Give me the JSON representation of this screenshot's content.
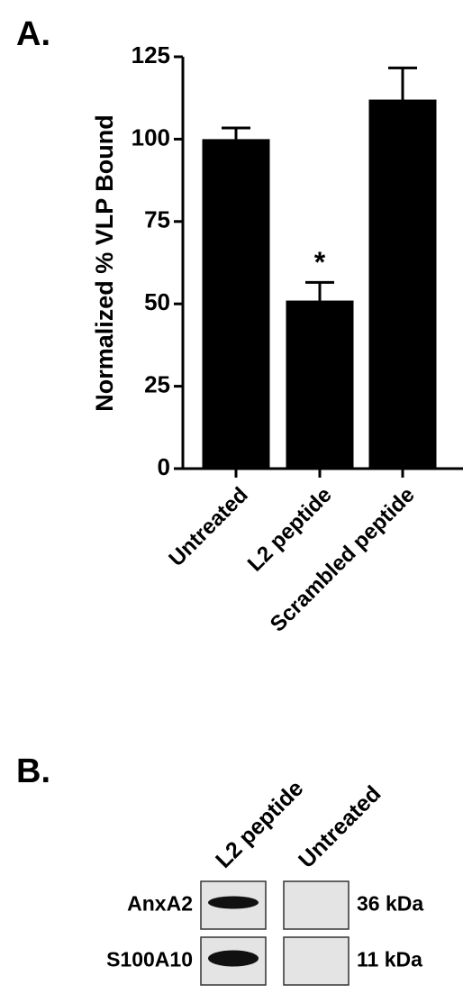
{
  "panel_labels": [
    "A.",
    "B."
  ],
  "chart_data": {
    "type": "bar",
    "ylabel": "Normalized % VLP Bound",
    "categories": [
      "Untreated",
      "L2 peptide",
      "Scrambled peptide"
    ],
    "values": [
      100,
      51,
      112
    ],
    "errors": [
      3.4,
      5.5,
      9.6
    ],
    "color": "#000000",
    "annotations": [
      {
        "category": 1,
        "text": "*"
      }
    ],
    "ylim": [
      0,
      125
    ],
    "yticks": [
      0,
      25,
      50,
      75,
      100,
      125
    ]
  },
  "blot": {
    "lanes": [
      "L2 peptide",
      "Untreated"
    ],
    "rows": [
      {
        "protein": "AnxA2",
        "size": "36 kDa"
      },
      {
        "protein": "S100A10",
        "size": "11 kDa"
      }
    ]
  }
}
